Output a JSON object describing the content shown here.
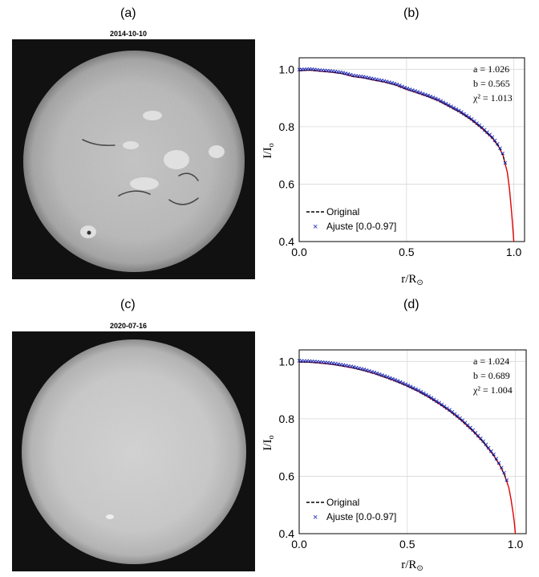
{
  "panels": {
    "a": {
      "label": "(a)",
      "date": "2014-10-10"
    },
    "b": {
      "label": "(b)"
    },
    "c": {
      "label": "(c)",
      "date": "2020-07-16"
    },
    "d": {
      "label": "(d)"
    }
  },
  "colors": {
    "original": "#000000",
    "fit": "#1f2bb4",
    "curve": "#e00000",
    "grid": "#d9d9d9"
  },
  "chart_data": [
    {
      "type": "line",
      "panel": "(b)",
      "xlabel": "r/R⊙",
      "ylabel": "I/Io",
      "xlim": [
        0.0,
        1.05
      ],
      "ylim": [
        0.4,
        1.04
      ],
      "xticks": [
        "0.0",
        "0.5",
        "1.0"
      ],
      "yticks": [
        "0.4",
        "0.6",
        "0.8",
        "1.0"
      ],
      "grid": true,
      "legend_position": "bottom-left",
      "annotations": [
        "a = 1.026",
        "b = 0.565",
        "χ² = 1.013"
      ],
      "fit_params": {
        "a": 1.026,
        "b": 0.565
      },
      "series": [
        {
          "name": "Original",
          "style": "dashed-black"
        },
        {
          "name": "Ajuste [0.0-0.97]",
          "style": "x-markers",
          "range": [
            0.0,
            0.97
          ]
        },
        {
          "style": "red-line",
          "x": [
            0.0,
            0.05,
            0.1,
            0.15,
            0.2,
            0.25,
            0.3,
            0.35,
            0.4,
            0.45,
            0.5,
            0.55,
            0.6,
            0.65,
            0.7,
            0.75,
            0.8,
            0.85,
            0.9,
            0.93,
            0.95,
            0.97,
            0.98,
            0.99,
            0.995,
            1.0
          ],
          "y": [
            0.995,
            0.997,
            0.993,
            0.99,
            0.985,
            0.975,
            0.97,
            0.962,
            0.955,
            0.945,
            0.93,
            0.918,
            0.905,
            0.89,
            0.87,
            0.85,
            0.825,
            0.795,
            0.76,
            0.73,
            0.7,
            0.64,
            0.58,
            0.5,
            0.45,
            0.4
          ]
        }
      ]
    },
    {
      "type": "line",
      "panel": "(d)",
      "xlabel": "r/R⊙",
      "ylabel": "I/Io",
      "xlim": [
        0.0,
        1.05
      ],
      "ylim": [
        0.4,
        1.04
      ],
      "xticks": [
        "0.0",
        "0.5",
        "1.0"
      ],
      "yticks": [
        "0.4",
        "0.6",
        "0.8",
        "1.0"
      ],
      "grid": true,
      "legend_position": "bottom-left",
      "annotations": [
        "a = 1.024",
        "b = 0.689",
        "χ² = 1.004"
      ],
      "fit_params": {
        "a": 1.024,
        "b": 0.689
      },
      "series": [
        {
          "name": "Original",
          "style": "dashed-black"
        },
        {
          "name": "Ajuste [0.0-0.97]",
          "style": "x-markers",
          "range": [
            0.0,
            0.97
          ]
        },
        {
          "style": "red-line",
          "x": [
            0.0,
            0.05,
            0.1,
            0.15,
            0.2,
            0.25,
            0.3,
            0.35,
            0.4,
            0.45,
            0.5,
            0.55,
            0.6,
            0.65,
            0.7,
            0.75,
            0.8,
            0.85,
            0.9,
            0.93,
            0.95,
            0.97,
            0.98,
            0.99,
            0.995,
            1.0
          ],
          "y": [
            0.998,
            0.997,
            0.994,
            0.99,
            0.984,
            0.977,
            0.968,
            0.957,
            0.944,
            0.93,
            0.914,
            0.896,
            0.875,
            0.851,
            0.825,
            0.795,
            0.76,
            0.72,
            0.672,
            0.635,
            0.605,
            0.56,
            0.52,
            0.47,
            0.44,
            0.4
          ]
        }
      ]
    }
  ]
}
